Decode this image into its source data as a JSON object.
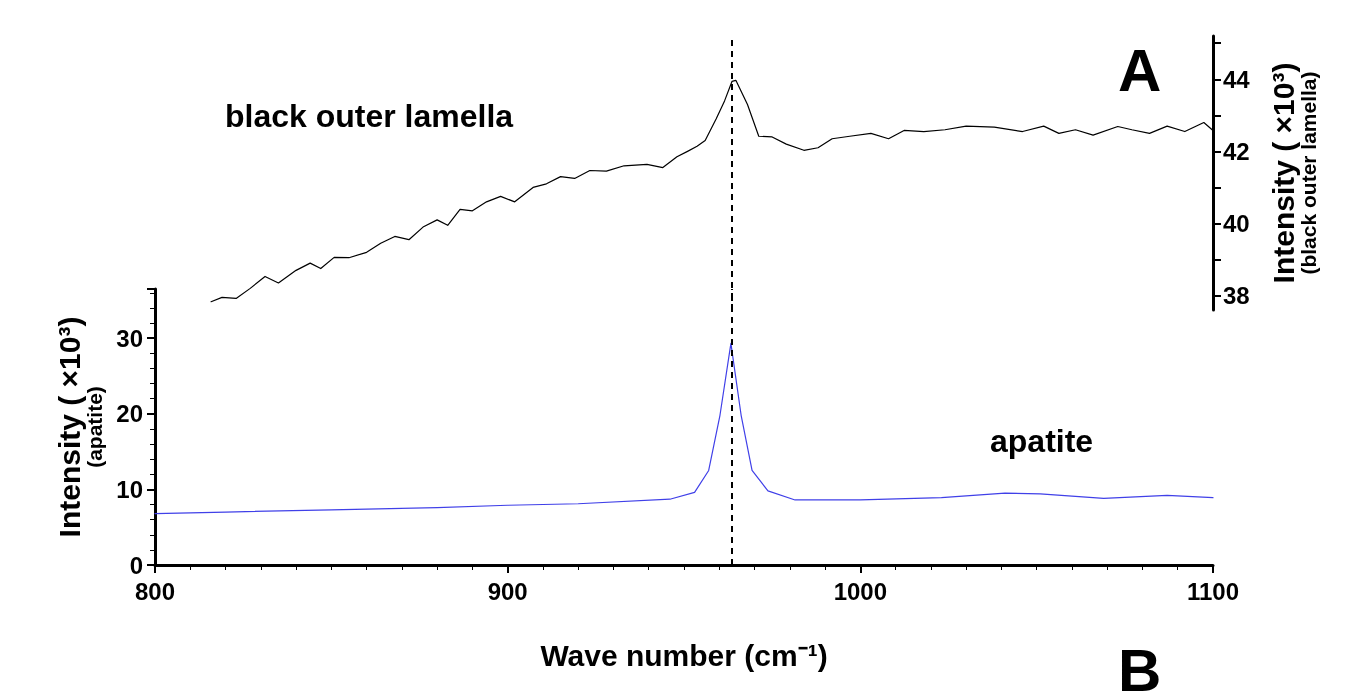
{
  "chart_data": [
    {
      "type": "line",
      "xlabel": "Wave number (cm⁻¹)",
      "ylabel": "Intensity ( ×10³)\n(apatite)",
      "annotations": [
        "apatite",
        "B"
      ],
      "xlim": [
        800,
        1100
      ],
      "xticks": [
        800,
        900,
        1000,
        1100
      ],
      "ylim": [
        0,
        36.5
      ],
      "yticks": [
        0,
        10,
        20,
        30
      ],
      "ref_lines": [
        {
          "axis": "x",
          "value": 963.5,
          "color": "#000000",
          "line_style": "dashed"
        }
      ],
      "series": [
        {
          "color": "#4040e8",
          "x": [
            800,
            820,
            850,
            880,
            900,
            920,
            946,
            953,
            957,
            960.2,
            963.3,
            966.2,
            969.3,
            973.8,
            981.5,
            1000,
            1023,
            1041,
            1051,
            1069,
            1087,
            1100
          ],
          "values": [
            6.8,
            7.0,
            7.3,
            7.6,
            7.9,
            8.1,
            8.7,
            9.6,
            12.5,
            19.8,
            29.3,
            19.8,
            12.5,
            9.8,
            8.6,
            8.6,
            8.9,
            9.5,
            9.4,
            8.8,
            9.2,
            8.9
          ]
        }
      ]
    },
    {
      "type": "line",
      "y2label": "Intensity ( ×10³)\n(black outer lamella)",
      "tick_labels": "y",
      "annotations": [
        "black outer lamella",
        "A"
      ],
      "xlim": [
        800,
        1100
      ],
      "y2lim": [
        37.6,
        45.2
      ],
      "y2ticks": [
        38,
        {
          "value": 39,
          "label": null
        },
        40,
        {
          "value": 41,
          "label": null
        },
        42,
        {
          "value": 43,
          "label": null
        },
        44,
        {
          "value": 45,
          "label": null
        }
      ],
      "ref_lines": [
        {
          "axis": "x",
          "value": 963.5,
          "color": "#000000",
          "line_style": "dashed"
        }
      ],
      "series": [
        {
          "color": "#000000",
          "axis": "y2",
          "x": [
            815.9,
            819,
            823,
            827,
            831.2,
            835,
            840,
            844,
            847,
            850.8,
            855,
            860,
            864,
            868,
            872,
            876,
            880,
            883,
            886.5,
            890,
            894,
            898,
            902,
            907.2,
            911,
            915,
            919,
            923.3,
            928,
            933,
            939.5,
            944,
            948,
            951,
            953.7,
            956,
            959.1,
            961.5,
            963.6,
            964.7,
            968,
            971.2,
            975,
            979,
            984,
            988,
            992,
            997,
            1003,
            1008,
            1012.4,
            1018,
            1024,
            1030,
            1038,
            1046,
            1052,
            1056.3,
            1061,
            1066,
            1073,
            1077,
            1082,
            1087,
            1092,
            1097.4,
            1100
          ],
          "values": [
            37.83,
            37.95,
            37.92,
            38.2,
            38.53,
            38.35,
            38.7,
            38.9,
            38.75,
            39.06,
            39.05,
            39.2,
            39.45,
            39.64,
            39.55,
            39.9,
            40.1,
            39.95,
            40.39,
            40.35,
            40.6,
            40.75,
            40.6,
            41.0,
            41.1,
            41.3,
            41.25,
            41.47,
            41.45,
            41.6,
            41.64,
            41.55,
            41.85,
            42.0,
            42.14,
            42.3,
            42.9,
            43.4,
            43.94,
            43.97,
            43.3,
            42.42,
            42.4,
            42.2,
            42.03,
            42.1,
            42.35,
            42.42,
            42.5,
            42.35,
            42.58,
            42.55,
            42.6,
            42.7,
            42.67,
            42.55,
            42.7,
            42.5,
            42.6,
            42.45,
            42.69,
            42.6,
            42.5,
            42.7,
            42.55,
            42.8,
            42.58
          ]
        }
      ]
    }
  ]
}
